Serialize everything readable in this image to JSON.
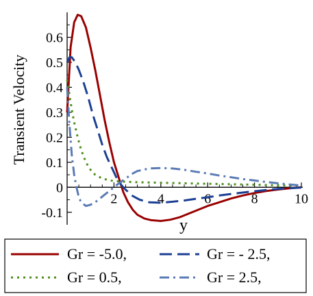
{
  "chart_data": {
    "type": "line",
    "ylabel": "Transient Velocity",
    "xlabel": "y",
    "xlim": [
      0,
      10
    ],
    "ylim": [
      -0.15,
      0.7
    ],
    "xticks": [
      2,
      4,
      6,
      8,
      10
    ],
    "yticks": [
      -0.1,
      0,
      0.1,
      0.2,
      0.3,
      0.4,
      0.5,
      0.6
    ],
    "ytick_labels": [
      "-0.1",
      "0",
      "0.1",
      "0.2",
      "0.3",
      "0.4",
      "0.5",
      "0.6"
    ],
    "grid": false,
    "legend_position": "bottom",
    "series": [
      {
        "name": "Gr = -5.0,",
        "color": "#990000",
        "dash": "solid",
        "x": [
          0,
          0.15,
          0.3,
          0.45,
          0.6,
          0.8,
          1.0,
          1.2,
          1.4,
          1.6,
          1.8,
          2.0,
          2.2,
          2.4,
          2.6,
          2.8,
          3.0,
          3.3,
          3.6,
          4.0,
          4.4,
          4.8,
          5.2,
          5.6,
          6.0,
          6.5,
          7.0,
          7.5,
          8.0,
          8.5,
          9.0,
          9.5,
          10.0
        ],
        "y": [
          0.3,
          0.56,
          0.66,
          0.69,
          0.685,
          0.64,
          0.56,
          0.47,
          0.37,
          0.27,
          0.18,
          0.1,
          0.04,
          -0.02,
          -0.06,
          -0.09,
          -0.11,
          -0.125,
          -0.132,
          -0.135,
          -0.13,
          -0.12,
          -0.105,
          -0.09,
          -0.075,
          -0.06,
          -0.045,
          -0.033,
          -0.023,
          -0.015,
          -0.009,
          -0.004,
          0.0
        ]
      },
      {
        "name": "Gr = - 2.5,",
        "color": "#1c3f94",
        "dash": "long-dash",
        "x": [
          0,
          0.1,
          0.2,
          0.35,
          0.5,
          0.7,
          0.9,
          1.1,
          1.3,
          1.5,
          1.7,
          1.9,
          2.1,
          2.3,
          2.5,
          2.8,
          3.1,
          3.5,
          4.0,
          4.5,
          5.0,
          5.5,
          6.0,
          6.5,
          7.0,
          7.5,
          8.0,
          8.5,
          9.0,
          9.5,
          10.0
        ],
        "y": [
          0.5,
          0.52,
          0.52,
          0.5,
          0.47,
          0.42,
          0.36,
          0.29,
          0.23,
          0.17,
          0.12,
          0.08,
          0.04,
          0.01,
          -0.01,
          -0.035,
          -0.05,
          -0.06,
          -0.062,
          -0.058,
          -0.053,
          -0.046,
          -0.04,
          -0.033,
          -0.027,
          -0.021,
          -0.016,
          -0.011,
          -0.007,
          -0.004,
          -0.001
        ]
      },
      {
        "name": "Gr = 0.5,",
        "color": "#4e8f1c",
        "dash": "dotted",
        "x": [
          0,
          0.1,
          0.2,
          0.3,
          0.45,
          0.6,
          0.8,
          1.0,
          1.2,
          1.5,
          1.8,
          2.0,
          2.5,
          3.0,
          4.0,
          5.0,
          6.0,
          7.0,
          8.0,
          9.0,
          10.0
        ],
        "y": [
          0.43,
          0.37,
          0.31,
          0.26,
          0.2,
          0.15,
          0.1,
          0.07,
          0.05,
          0.035,
          0.028,
          0.025,
          0.022,
          0.02,
          0.018,
          0.016,
          0.014,
          0.012,
          0.01,
          0.008,
          0.006
        ]
      },
      {
        "name": "Gr = 2.5,",
        "color": "#5a7bb5",
        "dash": "dash-dot",
        "x": [
          0,
          0.1,
          0.2,
          0.3,
          0.4,
          0.5,
          0.6,
          0.8,
          1.0,
          1.2,
          1.4,
          1.6,
          1.8,
          2.0,
          2.2,
          2.5,
          2.8,
          3.0,
          3.5,
          4.0,
          4.5,
          5.0,
          5.5,
          6.0,
          6.5,
          7.0,
          7.5,
          8.0,
          8.5,
          9.0,
          9.5,
          10.0
        ],
        "y": [
          0.4,
          0.25,
          0.13,
          0.05,
          0.0,
          -0.04,
          -0.06,
          -0.075,
          -0.07,
          -0.06,
          -0.045,
          -0.03,
          -0.015,
          0.0,
          0.015,
          0.035,
          0.055,
          0.065,
          0.075,
          0.077,
          0.075,
          0.07,
          0.062,
          0.055,
          0.047,
          0.04,
          0.033,
          0.027,
          0.021,
          0.016,
          0.011,
          0.007
        ]
      }
    ]
  }
}
